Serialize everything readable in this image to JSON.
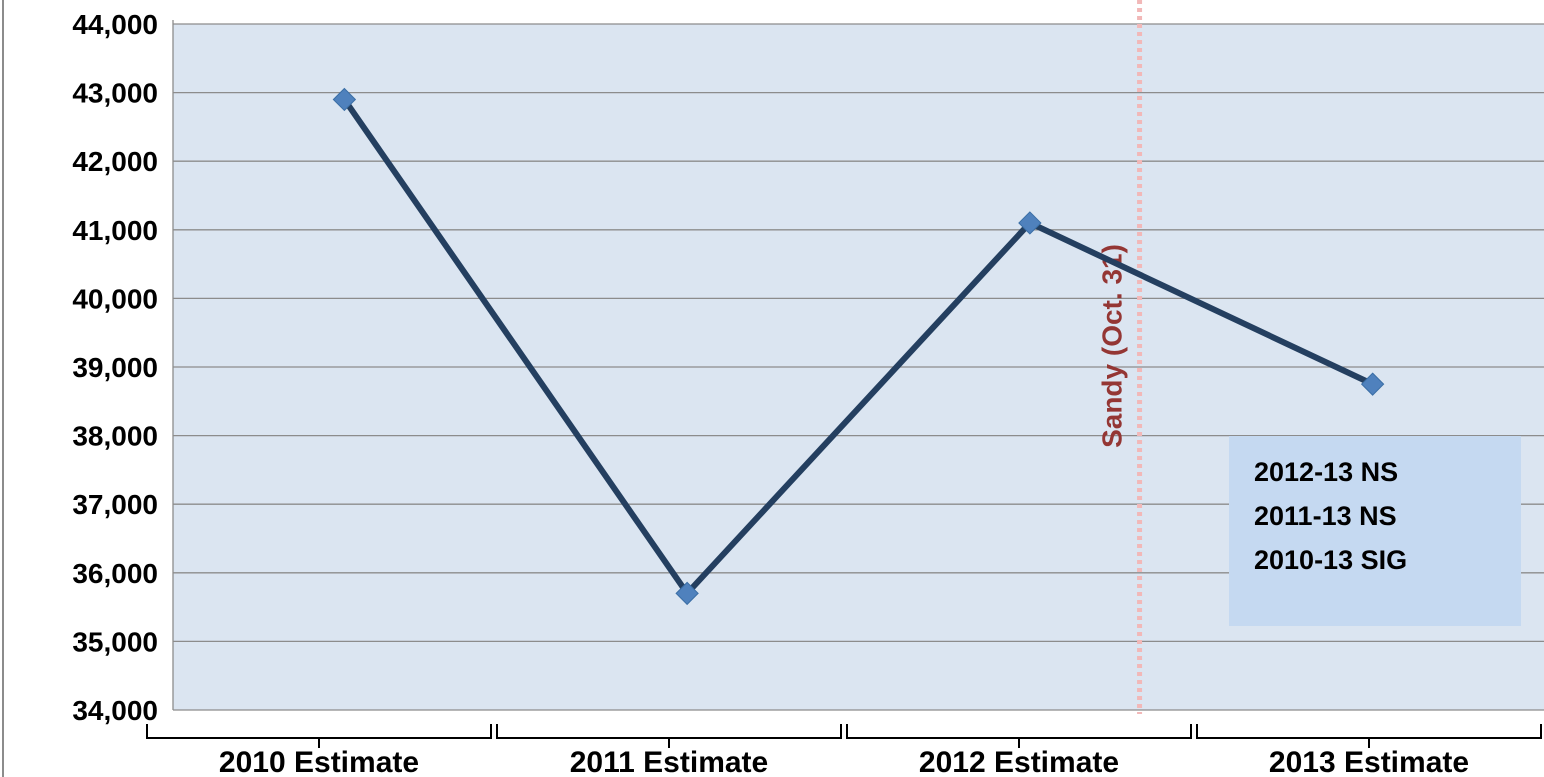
{
  "chart_data": {
    "type": "line",
    "categories": [
      "2010 Estimate",
      "2011 Estimate",
      "2012 Estimate",
      "2013 Estimate"
    ],
    "series": [
      {
        "values": [
          42900,
          35700,
          41100,
          38750
        ]
      }
    ],
    "ylim": [
      34000,
      44000
    ],
    "yticks": [
      "34,000",
      "35,000",
      "36,000",
      "37,000",
      "38,000",
      "39,000",
      "40,000",
      "41,000",
      "42,000",
      "43,000",
      "44,000"
    ],
    "grid": true,
    "annotations": {
      "event_label": "Sandy (Oct. 31)",
      "note_lines": [
        "2012-13 NS",
        "2011-13 NS",
        "2010-13 SIG"
      ]
    },
    "colors": {
      "plot_bg": "#dbe5f1",
      "line": "#243f60",
      "marker": "#4f81bd",
      "event_line": "#f2b8b8",
      "event_text": "#943634",
      "note_bg": "#c5d9f1"
    }
  }
}
